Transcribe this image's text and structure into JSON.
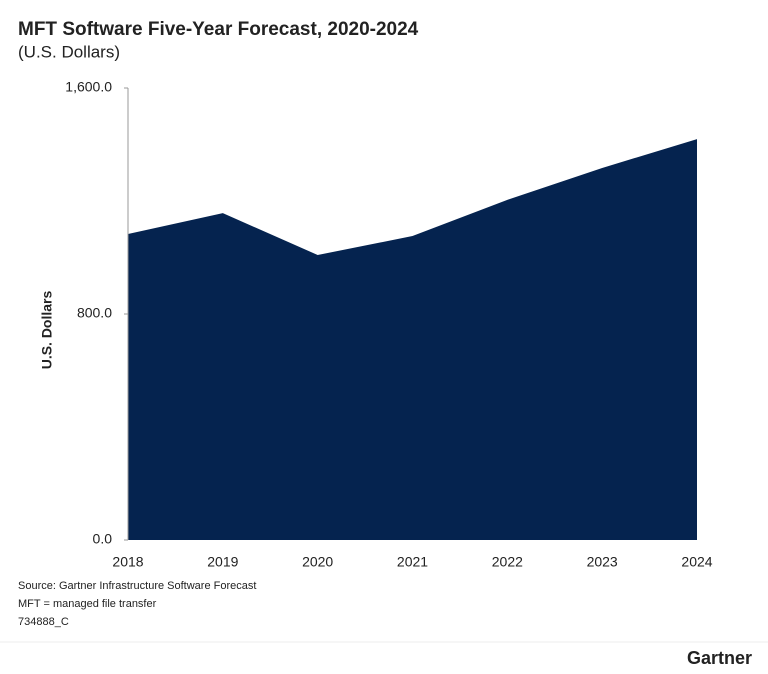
{
  "chart_data": {
    "type": "area",
    "title": "MFT Software Five-Year Forecast, 2020-2024",
    "subtitle": "(U.S. Dollars)",
    "y_label": "U.S. Dollars",
    "categories": [
      "2018",
      "2019",
      "2020",
      "2021",
      "2022",
      "2023",
      "2024"
    ],
    "values": [
      1083,
      1157,
      1009,
      1076,
      1204,
      1317,
      1419
    ],
    "color": "#05234f",
    "ylim": [
      0,
      1600
    ],
    "yticks": [
      {
        "value": 0,
        "label": "0.0"
      },
      {
        "value": 800,
        "label": "800.0"
      },
      {
        "value": 1600,
        "label": "1,600.0"
      }
    ],
    "source": "Source: Gartner Infrastructure Software Forecast",
    "note": "MFT = managed file transfer",
    "figure_id": "734888_C",
    "brand": "Gartner"
  }
}
